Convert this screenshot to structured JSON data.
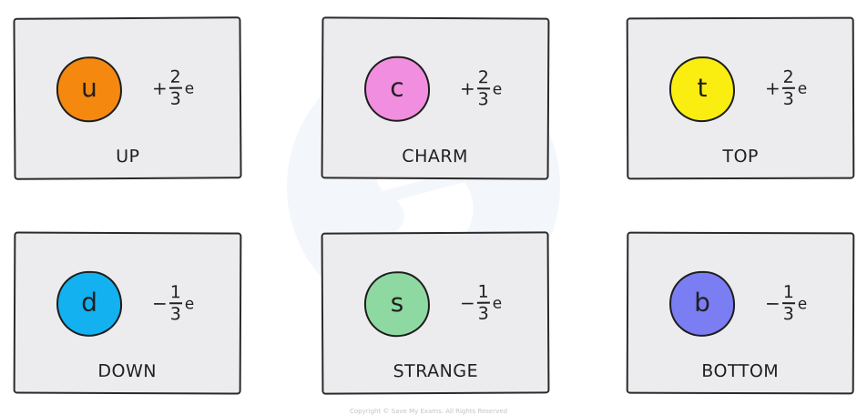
{
  "quarks": [
    {
      "symbol": "u",
      "sign": "+",
      "numerator": "2",
      "denominator": "3",
      "unit": "e",
      "name": "UP",
      "color": "#f5880f"
    },
    {
      "symbol": "c",
      "sign": "+",
      "numerator": "2",
      "denominator": "3",
      "unit": "e",
      "name": "CHARM",
      "color": "#f28ee0"
    },
    {
      "symbol": "t",
      "sign": "+",
      "numerator": "2",
      "denominator": "3",
      "unit": "e",
      "name": "TOP",
      "color": "#f9ee10"
    },
    {
      "symbol": "d",
      "sign": "−",
      "numerator": "1",
      "denominator": "3",
      "unit": "e",
      "name": "DOWN",
      "color": "#13b1f0"
    },
    {
      "symbol": "s",
      "sign": "−",
      "numerator": "1",
      "denominator": "3",
      "unit": "e",
      "name": "STRANGE",
      "color": "#8ed9a1"
    },
    {
      "symbol": "b",
      "sign": "−",
      "numerator": "1",
      "denominator": "3",
      "unit": "e",
      "name": "BOTTOM",
      "color": "#7b7df2"
    }
  ],
  "footer": "Copyright © Save My Exams. All Rights Reserved",
  "colors": {
    "card_background": "#ececee",
    "outline": "#2a2a2a",
    "watermark": "#eef2fa"
  }
}
